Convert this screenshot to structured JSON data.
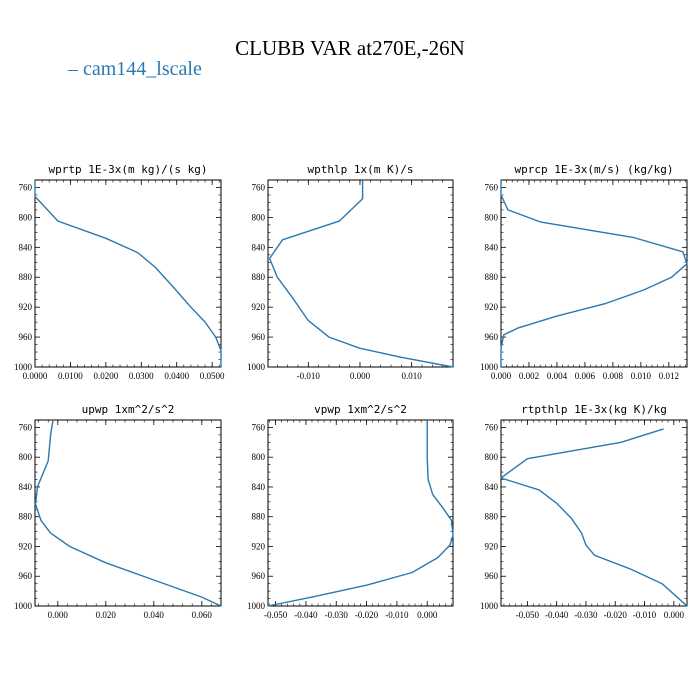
{
  "title": "CLUBB VAR at270E,-26N",
  "legend": {
    "label": "cam144_lscale",
    "marker": "–",
    "color": "#2a7ab0"
  },
  "line_color": "#2a7ab0",
  "chart_data": [
    {
      "type": "line",
      "title": "wprtp  1E-3x(m kg)/(s kg)",
      "xlim": [
        0,
        0.0525
      ],
      "ylim": [
        1000,
        750
      ],
      "xticks": [
        0.0,
        0.01,
        0.02,
        0.03,
        0.04,
        0.05
      ],
      "xtick_labels": [
        "0.0000",
        "0.0100",
        "0.0200",
        "0.0300",
        "0.0400",
        "0.0500"
      ],
      "yticks": [
        760,
        800,
        840,
        880,
        920,
        960,
        1000
      ],
      "series": [
        {
          "name": "cam144_lscale",
          "x": [
            0.0,
            0.0,
            0.0065,
            0.02,
            0.029,
            0.034,
            0.039,
            0.044,
            0.048,
            0.051,
            0.0525,
            0.0525
          ],
          "y": [
            750,
            772,
            805,
            828,
            847,
            867,
            893,
            920,
            940,
            960,
            978,
            1000
          ]
        }
      ]
    },
    {
      "type": "line",
      "title": "wpthlp  1x(m K)/s",
      "xlim": [
        -0.0178,
        0.018
      ],
      "ylim": [
        1000,
        750
      ],
      "xticks": [
        -0.01,
        0.0,
        0.01
      ],
      "xtick_labels": [
        "-0.010",
        "0.000",
        "0.010"
      ],
      "yticks": [
        760,
        800,
        840,
        880,
        920,
        960,
        1000
      ],
      "series": [
        {
          "name": "cam144_lscale",
          "x": [
            0.0005,
            0.0005,
            -0.004,
            -0.015,
            -0.0175,
            -0.016,
            -0.013,
            -0.01,
            -0.006,
            0.0,
            0.008,
            0.018
          ],
          "y": [
            750,
            775,
            805,
            830,
            855,
            880,
            908,
            938,
            960,
            975,
            987,
            1000
          ]
        }
      ]
    },
    {
      "type": "line",
      "title": "wprcp  1E-3x(m/s) (kg/kg)",
      "xlim": [
        0,
        0.0133
      ],
      "ylim": [
        1000,
        750
      ],
      "xticks": [
        0.0,
        0.002,
        0.004,
        0.006,
        0.008,
        0.01,
        0.012
      ],
      "xtick_labels": [
        "0.000",
        "0.002",
        "0.004",
        "0.006",
        "0.008",
        "0.010",
        "0.012"
      ],
      "yticks": [
        760,
        800,
        840,
        880,
        920,
        960,
        1000
      ],
      "series": [
        {
          "name": "cam144_lscale",
          "x": [
            0.0,
            0.0,
            0.0005,
            0.0028,
            0.0095,
            0.013,
            0.0133,
            0.0122,
            0.0102,
            0.0075,
            0.004,
            0.0012,
            0.0002,
            0.0,
            0.0
          ],
          "y": [
            750,
            770,
            790,
            806,
            827,
            846,
            862,
            880,
            897,
            915,
            932,
            948,
            957,
            975,
            1000
          ]
        }
      ]
    },
    {
      "type": "line",
      "title": "upwp  1xm^2/s^2",
      "xlim": [
        -0.0095,
        0.068
      ],
      "ylim": [
        1000,
        750
      ],
      "xticks": [
        0.0,
        0.02,
        0.04,
        0.06
      ],
      "xtick_labels": [
        "0.000",
        "0.020",
        "0.040",
        "0.060"
      ],
      "yticks": [
        760,
        800,
        840,
        880,
        920,
        960,
        1000
      ],
      "series": [
        {
          "name": "cam144_lscale",
          "x": [
            -0.002,
            -0.003,
            -0.004,
            -0.0085,
            -0.0093,
            -0.007,
            -0.003,
            0.005,
            0.02,
            0.04,
            0.06,
            0.068
          ],
          "y": [
            750,
            770,
            805,
            840,
            863,
            885,
            902,
            920,
            942,
            965,
            988,
            1000
          ]
        }
      ]
    },
    {
      "type": "line",
      "title": "vpwp  1xm^2/s^2",
      "xlim": [
        -0.0525,
        0.0085
      ],
      "ylim": [
        1000,
        750
      ],
      "xticks": [
        -0.05,
        -0.04,
        -0.03,
        -0.02,
        -0.01,
        0.0
      ],
      "xtick_labels": [
        "-0.050",
        "-0.040",
        "-0.030",
        "-0.020",
        "-0.010",
        "0.000"
      ],
      "yticks": [
        760,
        800,
        840,
        880,
        920,
        960,
        1000
      ],
      "series": [
        {
          "name": "cam144_lscale",
          "x": [
            0.0,
            0.0,
            0.0003,
            0.0018,
            0.0055,
            0.008,
            0.0085,
            0.0075,
            0.0035,
            -0.005,
            -0.02,
            -0.038,
            -0.0525
          ],
          "y": [
            750,
            800,
            830,
            850,
            870,
            885,
            905,
            918,
            935,
            955,
            972,
            988,
            1000
          ]
        }
      ]
    },
    {
      "type": "line",
      "title": "rtpthlp  1E-3x(kg K)/kg",
      "xlim": [
        -0.059,
        0.0045
      ],
      "ylim": [
        1000,
        750
      ],
      "xticks": [
        -0.05,
        -0.04,
        -0.03,
        -0.02,
        -0.01,
        0.0
      ],
      "xtick_labels": [
        "-0.050",
        "-0.040",
        "-0.030",
        "-0.020",
        "-0.010",
        "0.000"
      ],
      "yticks": [
        760,
        800,
        840,
        880,
        920,
        960,
        1000
      ],
      "series": [
        {
          "name": "cam144_lscale",
          "x": [
            -0.0035,
            -0.018,
            -0.05,
            -0.059,
            -0.046,
            -0.04,
            -0.035,
            -0.0315,
            -0.03,
            -0.027,
            -0.015,
            -0.004,
            0.0045
          ],
          "y": [
            762,
            780,
            802,
            828,
            844,
            862,
            882,
            902,
            918,
            932,
            950,
            970,
            1000
          ]
        }
      ]
    }
  ]
}
